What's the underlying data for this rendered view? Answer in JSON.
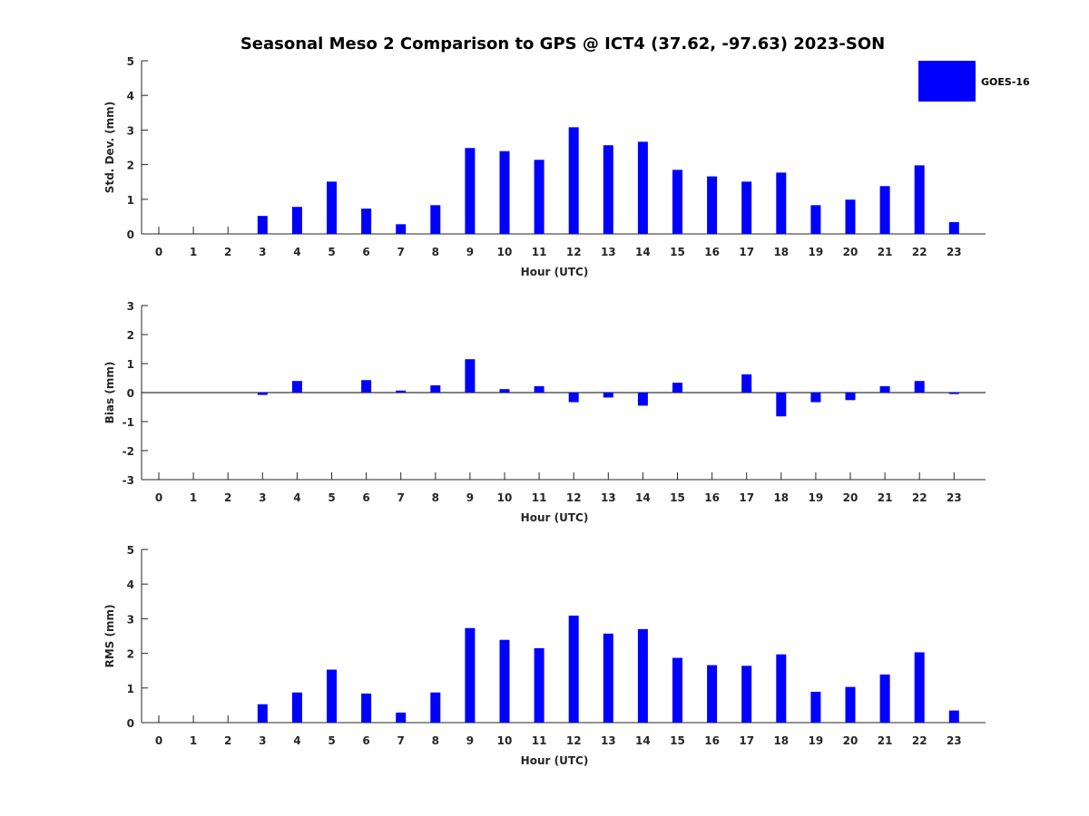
{
  "title": "Seasonal Meso 2 Comparison to GPS @ ICT4 (37.62, -97.63) 2023-SON",
  "legend": {
    "label": "GOES-16",
    "color": "#0000ff"
  },
  "chart_data": [
    {
      "type": "bar",
      "name": "std-dev",
      "xlabel": "Hour (UTC)",
      "ylabel": "Std. Dev. (mm)",
      "ylim": [
        0,
        5
      ],
      "yticks": [
        0,
        1,
        2,
        3,
        4,
        5
      ],
      "categories": [
        "0",
        "1",
        "2",
        "3",
        "4",
        "5",
        "6",
        "7",
        "8",
        "9",
        "10",
        "11",
        "12",
        "13",
        "14",
        "15",
        "16",
        "17",
        "18",
        "19",
        "20",
        "21",
        "22",
        "23"
      ],
      "series": [
        {
          "name": "GOES-16",
          "color": "#0000ff",
          "values": [
            0,
            0,
            0,
            0.52,
            0.78,
            1.51,
            0.73,
            0.28,
            0.83,
            2.48,
            2.39,
            2.14,
            3.08,
            2.56,
            2.66,
            1.85,
            1.66,
            1.51,
            1.77,
            0.83,
            0.99,
            1.38,
            1.98,
            0.34
          ]
        }
      ]
    },
    {
      "type": "bar",
      "name": "bias",
      "xlabel": "Hour (UTC)",
      "ylabel": "Bias (mm)",
      "ylim": [
        -3,
        3
      ],
      "yticks": [
        -3,
        -2,
        -1,
        0,
        1,
        2,
        3
      ],
      "categories": [
        "0",
        "1",
        "2",
        "3",
        "4",
        "5",
        "6",
        "7",
        "8",
        "9",
        "10",
        "11",
        "12",
        "13",
        "14",
        "15",
        "16",
        "17",
        "18",
        "19",
        "20",
        "21",
        "22",
        "23"
      ],
      "series": [
        {
          "name": "GOES-16",
          "color": "#0000ff",
          "values": [
            0,
            0,
            0,
            -0.08,
            0.4,
            0,
            0.43,
            0.07,
            0.25,
            1.15,
            0.12,
            0.22,
            -0.33,
            -0.17,
            -0.45,
            0.34,
            0,
            0.63,
            -0.82,
            -0.33,
            -0.26,
            0.22,
            0.4,
            -0.05
          ]
        }
      ]
    },
    {
      "type": "bar",
      "name": "rms",
      "xlabel": "Hour (UTC)",
      "ylabel": "RMS (mm)",
      "ylim": [
        0,
        5
      ],
      "yticks": [
        0,
        1,
        2,
        3,
        4,
        5
      ],
      "categories": [
        "0",
        "1",
        "2",
        "3",
        "4",
        "5",
        "6",
        "7",
        "8",
        "9",
        "10",
        "11",
        "12",
        "13",
        "14",
        "15",
        "16",
        "17",
        "18",
        "19",
        "20",
        "21",
        "22",
        "23"
      ],
      "series": [
        {
          "name": "GOES-16",
          "color": "#0000ff",
          "values": [
            0,
            0,
            0,
            0.53,
            0.87,
            1.53,
            0.84,
            0.29,
            0.87,
            2.73,
            2.39,
            2.15,
            3.09,
            2.57,
            2.7,
            1.87,
            1.66,
            1.64,
            1.97,
            0.89,
            1.03,
            1.39,
            2.03,
            0.35
          ]
        }
      ]
    }
  ]
}
